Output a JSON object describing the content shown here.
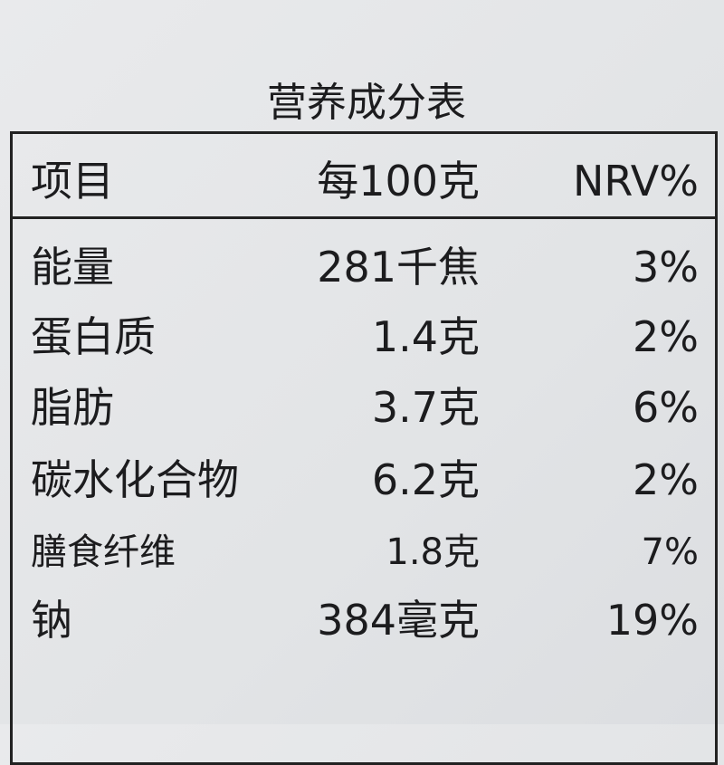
{
  "title": "营养成分表",
  "table": {
    "header": [
      "项目",
      "每100克",
      "NRV%"
    ],
    "rows": [
      [
        "能量",
        "281千焦",
        "3%"
      ],
      [
        "蛋白质",
        "1.4克",
        "2%"
      ],
      [
        "脂肪",
        "3.7克",
        "6%"
      ],
      [
        "碳水化合物",
        "6.2克",
        "2%"
      ],
      [
        "膳食纤维",
        "1.8克",
        "7%"
      ],
      [
        "钠",
        "384毫克",
        "19%"
      ]
    ]
  }
}
